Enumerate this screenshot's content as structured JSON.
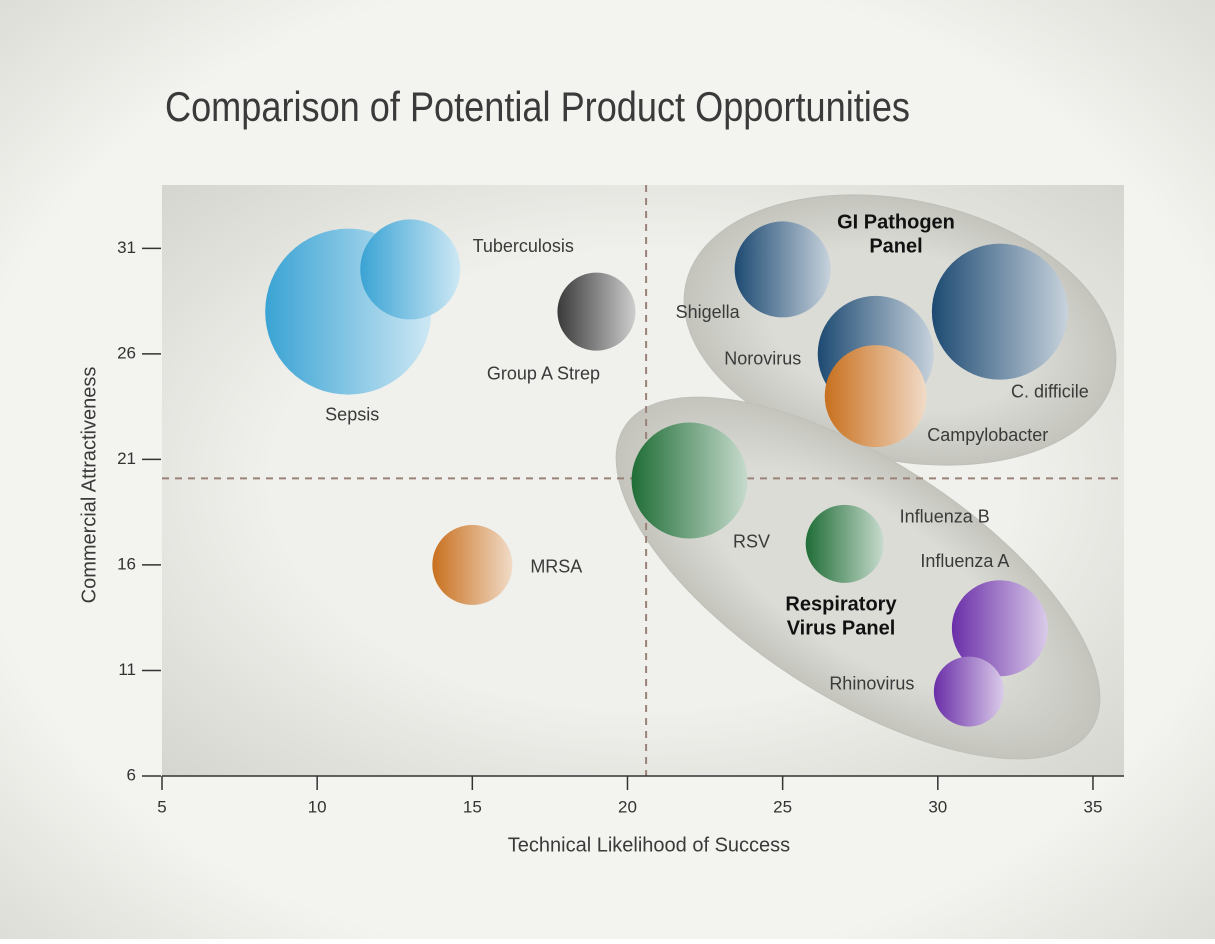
{
  "chart_data": {
    "type": "bubble",
    "title": "Comparison of Potential Product Opportunities",
    "xlabel": "Technical Likelihood of Success",
    "ylabel": "Commercial Attractiveness",
    "xlim": [
      5,
      36
    ],
    "xticks": [
      5,
      10,
      15,
      20,
      25,
      30,
      35
    ],
    "ylim": [
      6,
      34
    ],
    "yticks": [
      6,
      11,
      16,
      21,
      26,
      31
    ],
    "xref": 20.6,
    "yref": 20.1,
    "annotations": [
      [
        "GI Pathogen",
        "Panel"
      ],
      [
        "Respiratory",
        "Virus Panel"
      ]
    ],
    "points": [
      {
        "name": "Sepsis",
        "x": 11,
        "y": 28,
        "size": 83,
        "color": "#3aa3d4"
      },
      {
        "name": "Tuberculosis",
        "x": 13,
        "y": 30,
        "size": 50,
        "color": "#3aa3d4"
      },
      {
        "name": "Group A Strep",
        "x": 19,
        "y": 28,
        "size": 39,
        "color": "#3a3a3a"
      },
      {
        "name": "MRSA",
        "x": 15,
        "y": 16,
        "size": 40,
        "color": "#c8701e"
      },
      {
        "name": "Shigella",
        "x": 25,
        "y": 30,
        "size": 48,
        "color": "#1d4a72"
      },
      {
        "name": "Norovirus",
        "x": 28,
        "y": 26,
        "size": 58,
        "color": "#1d4a72"
      },
      {
        "name": "C. difficile",
        "x": 32,
        "y": 28,
        "size": 68,
        "color": "#1d4a72"
      },
      {
        "name": "Campylobacter",
        "x": 28,
        "y": 24,
        "size": 51,
        "color": "#c8701e"
      },
      {
        "name": "RSV",
        "x": 22,
        "y": 20,
        "size": 58,
        "color": "#1f6d36"
      },
      {
        "name": "Influenza B",
        "x": 27,
        "y": 17,
        "size": 39,
        "color": "#1f6d36"
      },
      {
        "name": "Influenza A",
        "x": 32,
        "y": 13,
        "size": 48,
        "color": "#6a2ea8"
      },
      {
        "name": "Rhinovirus",
        "x": 31,
        "y": 10,
        "size": 35,
        "color": "#6a2ea8"
      }
    ]
  }
}
